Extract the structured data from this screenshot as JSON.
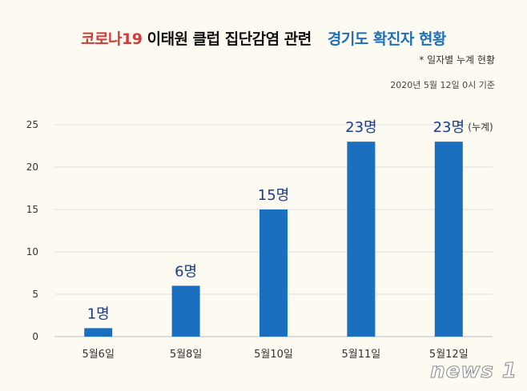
{
  "header": {
    "title_red": "코로나19",
    "title_black": "이태원 클럽 집단감염 관련",
    "title_blue": "경기도 확진자 현황",
    "subtitle": "* 일자별 누계 현황",
    "date_note": "2020년 5월 12일 0시 기준"
  },
  "logo": "news1",
  "colors": {
    "bar": "#1a6fbf",
    "label": "#1a3a8a",
    "background": "#fdfbf1"
  },
  "chart_data": {
    "type": "bar",
    "categories": [
      "5월6일",
      "5월8일",
      "5월10일",
      "5월11일",
      "5월12일"
    ],
    "values": [
      1,
      6,
      15,
      23,
      23
    ],
    "data_labels": [
      "1명",
      "6명",
      "15명",
      "23명",
      "23명"
    ],
    "data_label_suffix_last": "(누계)",
    "yticks": [
      0,
      5,
      10,
      15,
      20,
      25
    ],
    "ylim": [
      0,
      25
    ],
    "grid": true
  }
}
